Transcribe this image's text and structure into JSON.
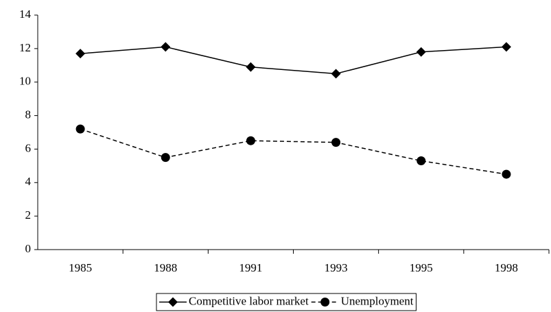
{
  "chart_data": {
    "type": "line",
    "categories": [
      "1985",
      "1988",
      "1991",
      "1993",
      "1995",
      "1998"
    ],
    "series": [
      {
        "name": "Competitive labor market",
        "color": "#000000",
        "line_style": "solid",
        "marker": "diamond",
        "values": [
          11.7,
          12.1,
          10.9,
          10.5,
          11.8,
          12.1
        ]
      },
      {
        "name": "Unemployment",
        "color": "#000000",
        "line_style": "dashed",
        "marker": "circle",
        "values": [
          7.2,
          5.5,
          6.5,
          6.4,
          5.3,
          4.5
        ]
      }
    ],
    "ylim": [
      0,
      14
    ],
    "yticks": [
      0,
      2,
      4,
      6,
      8,
      10,
      12,
      14
    ],
    "grid": false,
    "legend": "bottom"
  }
}
